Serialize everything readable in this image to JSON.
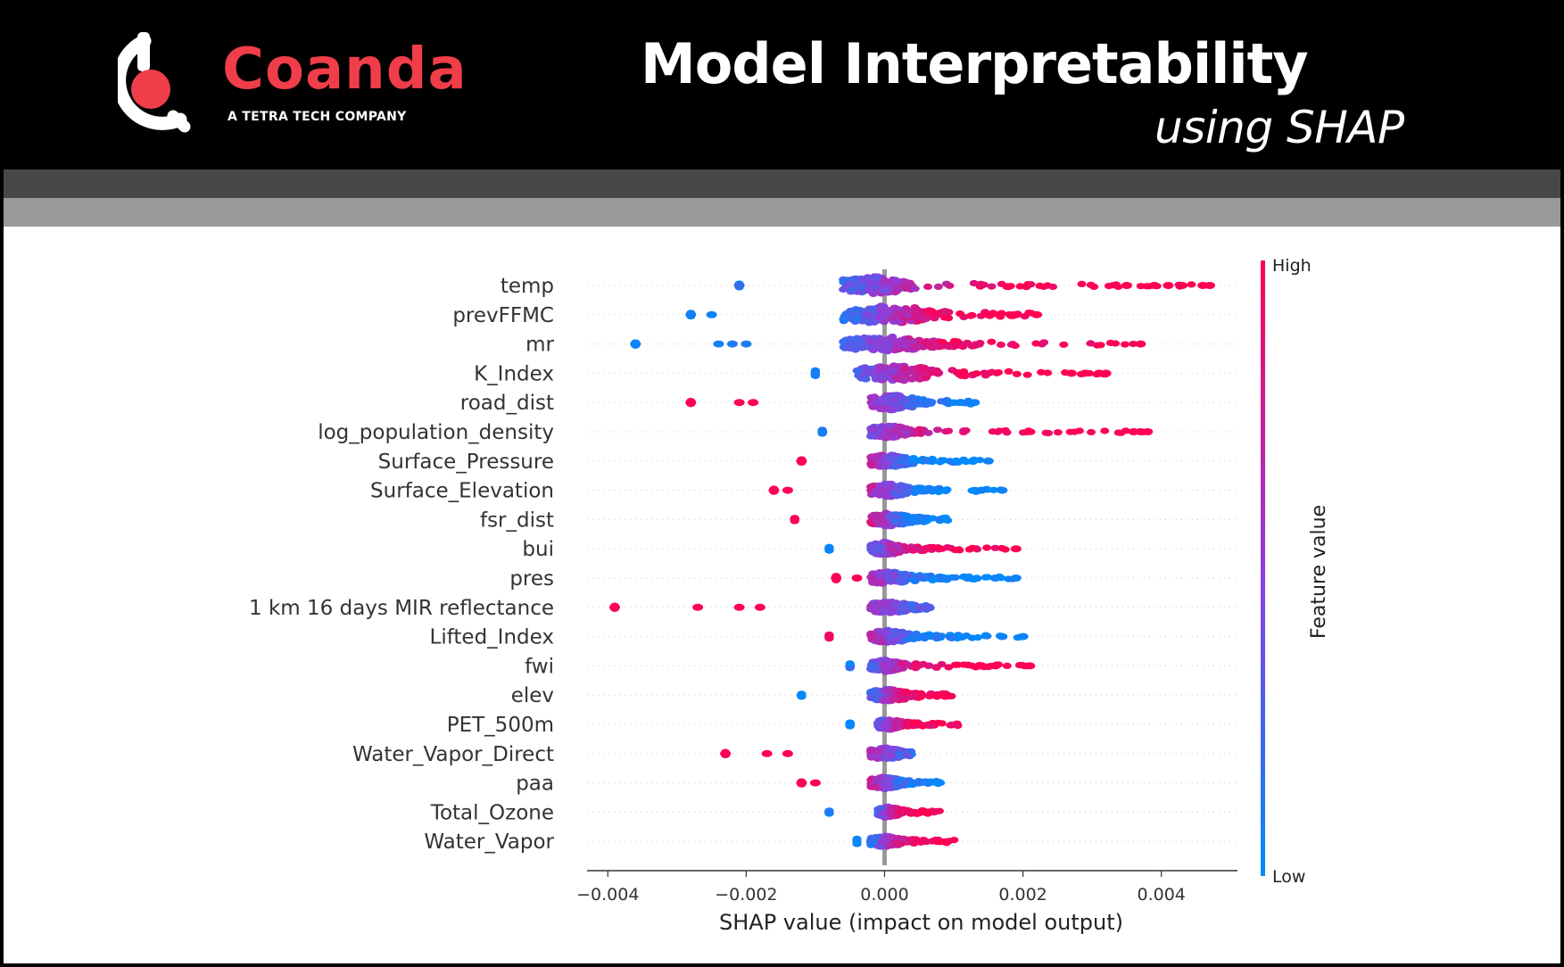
{
  "header": {
    "brand_name": "Coanda",
    "brand_tagline": "A TETRA TECH COMPANY",
    "title": "Model Interpretability",
    "subtitle": "using SHAP"
  },
  "colors": {
    "brand_red": "#ef3e4a",
    "low": "#008afb",
    "mid": "#8f3eda",
    "high": "#ff0052",
    "header_bg": "#000000",
    "band_dark": "#474747",
    "band_light": "#9a9a9a"
  },
  "chart_data": {
    "type": "scatter",
    "subtype": "shap-beeswarm",
    "xlabel": "SHAP value (impact on model output)",
    "xlim": [
      -0.0043,
      0.0051
    ],
    "xticks": [
      -0.004,
      -0.002,
      0.0,
      0.002,
      0.004
    ],
    "xtick_labels": [
      "−0.004",
      "−0.002",
      "0.000",
      "0.002",
      "0.004"
    ],
    "zero_line": true,
    "colorbar": {
      "label": "Feature value",
      "high_label": "High",
      "low_label": "Low",
      "placement": "right"
    },
    "features": [
      {
        "name": "temp",
        "min": -0.0021,
        "max": 0.0047,
        "core": [
          -0.0006,
          0.0003
        ],
        "low_side": "negative",
        "width": 0.8,
        "outliers": [
          [
            -0.0021,
            0.2
          ],
          [
            0.0035,
            1
          ],
          [
            0.0039,
            1
          ],
          [
            0.0041,
            1
          ],
          [
            0.0043,
            1
          ],
          [
            0.0046,
            1
          ],
          [
            0.0047,
            1
          ]
        ]
      },
      {
        "name": "prevFFMC",
        "min": -0.0028,
        "max": 0.0022,
        "core": [
          -0.0006,
          0.0006
        ],
        "low_side": "negative",
        "width": 0.85,
        "outliers": [
          [
            -0.0028,
            0.05
          ],
          [
            -0.0025,
            0.05
          ],
          [
            0.0019,
            1
          ],
          [
            0.0022,
            1
          ]
        ]
      },
      {
        "name": "mr",
        "min": -0.0036,
        "max": 0.0038,
        "core": [
          -0.0006,
          0.0005
        ],
        "low_side": "negative",
        "width": 0.7,
        "outliers": [
          [
            -0.0036,
            0.05
          ],
          [
            -0.0024,
            0.05
          ],
          [
            -0.0022,
            0.1
          ],
          [
            -0.002,
            0.1
          ],
          [
            0.0037,
            1
          ]
        ]
      },
      {
        "name": "K_Index",
        "min": -0.001,
        "max": 0.0032,
        "core": [
          -0.0004,
          0.0006
        ],
        "low_side": "negative",
        "width": 0.75,
        "outliers": [
          [
            0.0027,
            1
          ],
          [
            0.0029,
            1
          ],
          [
            0.0031,
            1
          ],
          [
            0.0032,
            1
          ]
        ]
      },
      {
        "name": "road_dist",
        "min": -0.0028,
        "max": 0.0013,
        "core": [
          -0.0002,
          0.0004
        ],
        "low_side": "positive",
        "width": 0.7,
        "outliers": [
          [
            -0.0028,
            1
          ],
          [
            -0.0021,
            1
          ],
          [
            -0.0019,
            1
          ],
          [
            0.0011,
            0.05
          ],
          [
            0.0013,
            0.05
          ]
        ]
      },
      {
        "name": "log_population_density",
        "min": -0.0009,
        "max": 0.0038,
        "core": [
          -0.0002,
          0.0003
        ],
        "low_side": "negative",
        "width": 0.6,
        "outliers": [
          [
            0.0036,
            1
          ],
          [
            0.0037,
            1
          ],
          [
            0.0038,
            1
          ]
        ]
      },
      {
        "name": "Surface_Pressure",
        "min": -0.0012,
        "max": 0.0015,
        "core": [
          -0.0002,
          0.0003
        ],
        "low_side": "positive",
        "width": 0.6,
        "outliers": [
          [
            -0.0012,
            1
          ],
          [
            0.0015,
            0.05
          ]
        ]
      },
      {
        "name": "Surface_Elevation",
        "min": -0.0016,
        "max": 0.0017,
        "core": [
          -0.0002,
          0.0003
        ],
        "low_side": "positive",
        "width": 0.6,
        "outliers": [
          [
            -0.0016,
            1
          ],
          [
            -0.0014,
            1
          ],
          [
            0.0014,
            0.05
          ],
          [
            0.0017,
            0.05
          ]
        ]
      },
      {
        "name": "fsr_dist",
        "min": -0.0013,
        "max": 0.001,
        "core": [
          -0.0002,
          0.0003
        ],
        "low_side": "positive",
        "width": 0.6,
        "outliers": []
      },
      {
        "name": "bui",
        "min": -0.0008,
        "max": 0.0019,
        "core": [
          -0.0002,
          0.0002
        ],
        "low_side": "negative",
        "width": 0.6,
        "outliers": [
          [
            0.0019,
            1
          ]
        ]
      },
      {
        "name": "pres",
        "min": -0.0007,
        "max": 0.0019,
        "core": [
          -0.0002,
          0.0003
        ],
        "low_side": "positive",
        "width": 0.6,
        "outliers": [
          [
            -0.0007,
            1
          ],
          [
            -0.0004,
            1
          ],
          [
            0.0016,
            0.05
          ],
          [
            0.0019,
            0.05
          ]
        ]
      },
      {
        "name": "1 km 16 days MIR reflectance",
        "min": -0.0039,
        "max": 0.0007,
        "core": [
          -0.0002,
          0.0003
        ],
        "low_side": "positive",
        "width": 0.55,
        "outliers": [
          [
            -0.0039,
            1
          ],
          [
            -0.0027,
            1
          ],
          [
            -0.0021,
            1
          ],
          [
            -0.0018,
            1
          ]
        ]
      },
      {
        "name": "Lifted_Index",
        "min": -0.0008,
        "max": 0.002,
        "core": [
          -0.0002,
          0.0003
        ],
        "low_side": "positive",
        "width": 0.6,
        "outliers": [
          [
            0.0017,
            0.05
          ],
          [
            0.002,
            0.05
          ]
        ]
      },
      {
        "name": "fwi",
        "min": -0.0005,
        "max": 0.0021,
        "core": [
          -0.0002,
          0.0002
        ],
        "low_side": "negative",
        "width": 0.55,
        "outliers": [
          [
            0.0014,
            1
          ],
          [
            0.0016,
            1
          ],
          [
            0.0021,
            1
          ]
        ]
      },
      {
        "name": "elev",
        "min": -0.0012,
        "max": 0.001,
        "core": [
          -0.0002,
          0.0003
        ],
        "low_side": "negative",
        "width": 0.55,
        "outliers": []
      },
      {
        "name": "PET_500m",
        "min": -0.0005,
        "max": 0.0011,
        "core": [
          -0.0001,
          0.0002
        ],
        "low_side": "negative",
        "width": 0.5,
        "outliers": []
      },
      {
        "name": "Water_Vapor_Direct",
        "min": -0.0023,
        "max": 0.0004,
        "core": [
          -0.0002,
          0.0002
        ],
        "low_side": "positive",
        "width": 0.55,
        "outliers": [
          [
            -0.0023,
            1
          ],
          [
            -0.0017,
            1
          ],
          [
            -0.0014,
            1
          ]
        ]
      },
      {
        "name": "paa",
        "min": -0.0012,
        "max": 0.0009,
        "core": [
          -0.0002,
          0.0002
        ],
        "low_side": "positive",
        "width": 0.55,
        "outliers": [
          [
            -0.0012,
            1
          ],
          [
            -0.001,
            1
          ]
        ]
      },
      {
        "name": "Total_Ozone",
        "min": -0.0008,
        "max": 0.0008,
        "core": [
          -0.0001,
          0.0002
        ],
        "low_side": "negative",
        "width": 0.5,
        "outliers": []
      },
      {
        "name": "Water_Vapor",
        "min": -0.0004,
        "max": 0.0011,
        "core": [
          -0.0002,
          0.0002
        ],
        "low_side": "negative",
        "width": 0.5,
        "outliers": []
      }
    ]
  }
}
